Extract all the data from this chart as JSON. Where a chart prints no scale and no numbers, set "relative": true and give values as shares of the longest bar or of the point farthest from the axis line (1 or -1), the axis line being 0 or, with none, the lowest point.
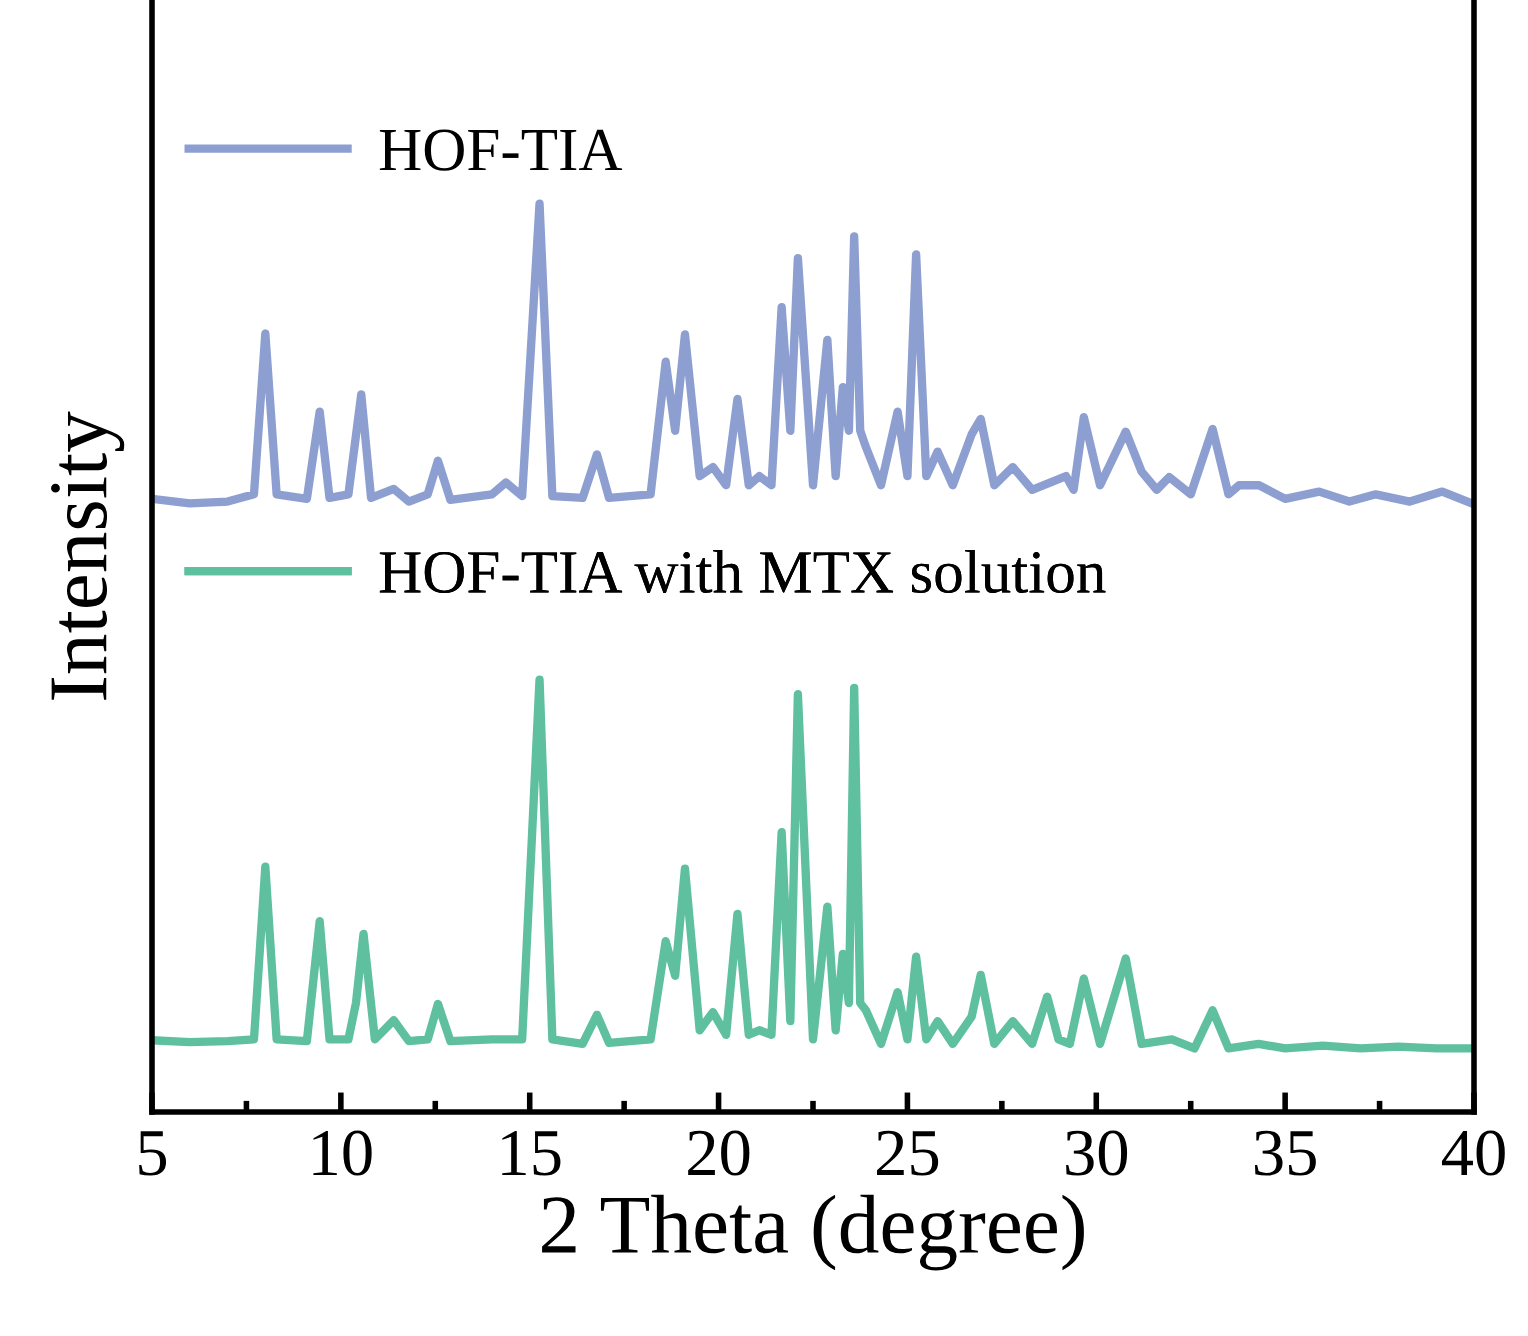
{
  "chart_data": {
    "type": "line",
    "relative": true,
    "xlabel": "2 Theta (degree)",
    "ylabel": "Intensity",
    "xlim": [
      5,
      40
    ],
    "xticks": [
      5,
      10,
      15,
      20,
      25,
      30,
      35,
      40
    ],
    "legend": "top left",
    "grid": false,
    "marker": "none",
    "line_style": "solid",
    "series": [
      {
        "name": "HOF-TIA",
        "color": "#8c9fd0",
        "x": [
          5,
          6,
          7,
          7.7,
          8.0,
          8.3,
          9.1,
          9.44,
          9.7,
          10.2,
          10.54,
          10.8,
          11.4,
          11.8,
          12.3,
          12.57,
          12.9,
          14.0,
          14.37,
          14.8,
          15.26,
          15.6,
          16.4,
          16.78,
          17.1,
          18.2,
          18.6,
          18.85,
          19.11,
          19.5,
          19.85,
          20.2,
          20.5,
          20.8,
          21.08,
          21.4,
          21.67,
          21.9,
          22.1,
          22.5,
          22.88,
          23.1,
          23.29,
          23.45,
          23.59,
          23.75,
          23.9,
          24.3,
          24.74,
          25.0,
          25.23,
          25.5,
          25.8,
          26.2,
          26.7,
          26.94,
          27.3,
          27.79,
          28.3,
          29.2,
          29.4,
          29.67,
          30.1,
          30.78,
          31.2,
          31.6,
          31.93,
          32.5,
          33.08,
          33.5,
          33.78,
          34.31,
          35.0,
          35.9,
          36.7,
          37.4,
          38.3,
          39.16,
          40
        ],
        "values": [
          0.675,
          0.67,
          0.672,
          0.68,
          0.857,
          0.68,
          0.675,
          0.771,
          0.676,
          0.68,
          0.79,
          0.676,
          0.686,
          0.672,
          0.68,
          0.717,
          0.674,
          0.68,
          0.693,
          0.678,
          1,
          0.678,
          0.676,
          0.724,
          0.676,
          0.68,
          0.826,
          0.75,
          0.856,
          0.7,
          0.71,
          0.69,
          0.785,
          0.69,
          0.7,
          0.69,
          0.886,
          0.75,
          0.94,
          0.69,
          0.85,
          0.7,
          0.798,
          0.75,
          0.964,
          0.75,
          0.732,
          0.69,
          0.771,
          0.7,
          0.944,
          0.7,
          0.727,
          0.69,
          0.746,
          0.763,
          0.69,
          0.71,
          0.685,
          0.7,
          0.685,
          0.765,
          0.69,
          0.749,
          0.705,
          0.685,
          0.699,
          0.68,
          0.752,
          0.68,
          0.69,
          0.69,
          0.675,
          0.683,
          0.672,
          0.68,
          0.672,
          0.683,
          0.669
        ]
      },
      {
        "name": "HOF-TIA with MTX solution",
        "color": "#5fc09f",
        "x": [
          5,
          6,
          7,
          7.7,
          8.0,
          8.3,
          9.1,
          9.44,
          9.7,
          10.2,
          10.4,
          10.6,
          10.9,
          11.4,
          11.8,
          12.3,
          12.57,
          12.9,
          14.0,
          14.8,
          15.26,
          15.6,
          16.4,
          16.78,
          17.1,
          18.2,
          18.6,
          18.85,
          19.11,
          19.5,
          19.85,
          20.2,
          20.5,
          20.8,
          21.08,
          21.4,
          21.67,
          21.9,
          22.1,
          22.5,
          22.88,
          23.1,
          23.29,
          23.45,
          23.59,
          23.75,
          23.9,
          24.3,
          24.74,
          25.0,
          25.23,
          25.5,
          25.8,
          26.2,
          26.7,
          26.94,
          27.3,
          27.79,
          28.3,
          28.7,
          29.0,
          29.3,
          29.67,
          30.1,
          30.78,
          31.2,
          32.0,
          32.6,
          33.08,
          33.5,
          34.3,
          35.0,
          36.0,
          37.0,
          38.0,
          39.0,
          40
        ],
        "values": [
          0.079,
          0.077,
          0.078,
          0.08,
          0.27,
          0.08,
          0.078,
          0.21,
          0.08,
          0.08,
          0.12,
          0.196,
          0.08,
          0.101,
          0.078,
          0.08,
          0.119,
          0.078,
          0.08,
          0.08,
          0.476,
          0.08,
          0.075,
          0.107,
          0.076,
          0.08,
          0.188,
          0.15,
          0.268,
          0.09,
          0.11,
          0.085,
          0.218,
          0.085,
          0.09,
          0.085,
          0.308,
          0.1,
          0.46,
          0.08,
          0.226,
          0.09,
          0.174,
          0.12,
          0.467,
          0.12,
          0.112,
          0.075,
          0.132,
          0.08,
          0.171,
          0.08,
          0.1,
          0.075,
          0.105,
          0.151,
          0.075,
          0.1,
          0.075,
          0.127,
          0.08,
          0.075,
          0.147,
          0.075,
          0.169,
          0.075,
          0.08,
          0.07,
          0.112,
          0.07,
          0.075,
          0.07,
          0.073,
          0.07,
          0.072,
          0.07,
          0.07
        ]
      }
    ]
  }
}
